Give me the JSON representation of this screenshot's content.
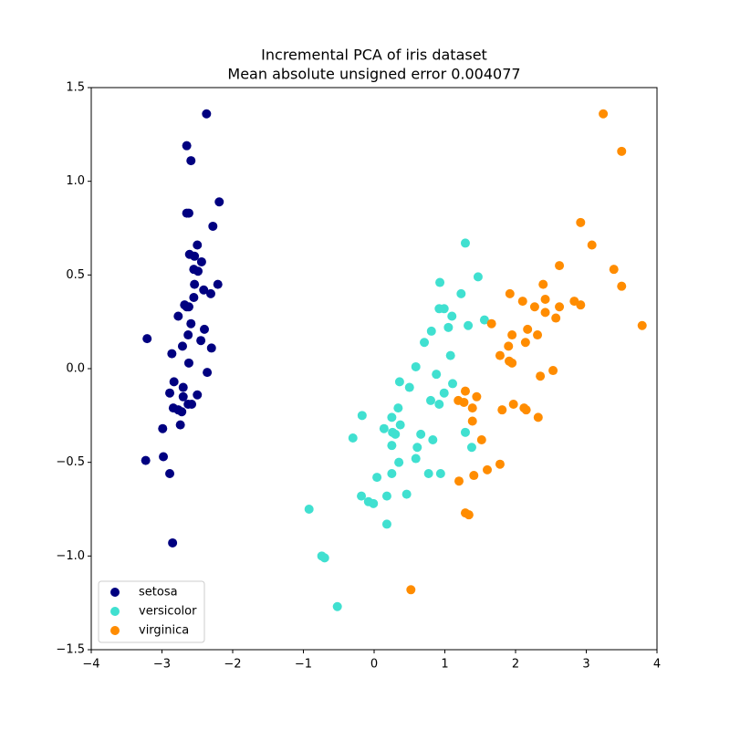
{
  "chart_data": {
    "type": "scatter",
    "title": "Incremental PCA of iris dataset",
    "subtitle": "Mean absolute unsigned error 0.004077",
    "xlim": [
      -4,
      4
    ],
    "ylim": [
      -1.5,
      1.5
    ],
    "xticks": [
      {
        "value": -4,
        "label": "−4"
      },
      {
        "value": -3,
        "label": "−3"
      },
      {
        "value": -2,
        "label": "−2"
      },
      {
        "value": -1,
        "label": "−1"
      },
      0,
      1,
      2,
      3,
      4
    ],
    "yticks": [
      {
        "value": -1.5,
        "label": "−1.5"
      },
      {
        "value": -1,
        "label": "−1.0"
      },
      {
        "value": -0.5,
        "label": "−0.5"
      },
      {
        "value": 0,
        "label": "0.0"
      },
      0.5,
      {
        "value": 1,
        "label": "1.0"
      },
      1.5
    ],
    "grid": false,
    "legend": "lower left",
    "series": [
      {
        "name": "setosa",
        "color": "#000080",
        "x": [
          -2.37,
          -2.65,
          -2.59,
          -2.62,
          -2.65,
          -2.19,
          -2.28,
          -2.5,
          -2.61,
          -2.54,
          -2.44,
          -2.55,
          -2.49,
          -2.54,
          -2.55,
          -2.68,
          -2.41,
          -2.21,
          -2.31,
          -2.65,
          -2.62,
          -2.77,
          -2.59,
          -2.4,
          -2.63,
          -2.45,
          -2.3,
          -3.21,
          -2.86,
          -2.71,
          -2.62,
          -2.36,
          -2.83,
          -2.89,
          -2.7,
          -2.63,
          -2.5,
          -2.84,
          -2.77,
          -2.72,
          -2.58,
          -2.74,
          -2.99,
          -3.23,
          -2.98,
          -2.89,
          -2.85,
          -2.7
        ],
        "values": [
          1.36,
          1.19,
          1.11,
          0.83,
          0.83,
          0.89,
          0.76,
          0.66,
          0.61,
          0.6,
          0.57,
          0.53,
          0.52,
          0.45,
          0.38,
          0.34,
          0.42,
          0.45,
          0.4,
          0.33,
          0.33,
          0.28,
          0.24,
          0.21,
          0.18,
          0.15,
          0.11,
          0.16,
          0.08,
          0.12,
          0.03,
          -0.02,
          -0.07,
          -0.13,
          -0.15,
          -0.19,
          -0.14,
          -0.21,
          -0.22,
          -0.23,
          -0.19,
          -0.3,
          -0.32,
          -0.49,
          -0.47,
          -0.56,
          -0.93,
          -0.1
        ]
      },
      {
        "name": "versicolor",
        "color": "#40e0d0",
        "x": [
          1.29,
          1.47,
          0.93,
          1.23,
          0.92,
          0.99,
          1.1,
          1.56,
          1.33,
          1.05,
          0.81,
          0.71,
          1.08,
          0.88,
          0.59,
          0.36,
          0.5,
          1.11,
          0.8,
          0.92,
          0.99,
          0.34,
          -0.17,
          0.25,
          0.37,
          0.14,
          0.26,
          0.3,
          0.66,
          1.29,
          -0.3,
          0.83,
          0.61,
          0.25,
          1.38,
          0.59,
          0.35,
          0.77,
          0.94,
          0.25,
          0.04,
          0.46,
          0.18,
          -0.18,
          -0.08,
          -0.01,
          0.18,
          -0.92,
          -0.74,
          -0.7,
          -0.52
        ],
        "values": [
          0.67,
          0.49,
          0.46,
          0.4,
          0.32,
          0.32,
          0.28,
          0.26,
          0.23,
          0.22,
          0.2,
          0.14,
          0.07,
          -0.03,
          0.01,
          -0.07,
          -0.1,
          -0.08,
          -0.17,
          -0.19,
          -0.13,
          -0.21,
          -0.25,
          -0.26,
          -0.3,
          -0.32,
          -0.34,
          -0.35,
          -0.35,
          -0.34,
          -0.37,
          -0.38,
          -0.42,
          -0.41,
          -0.42,
          -0.48,
          -0.5,
          -0.56,
          -0.56,
          -0.56,
          -0.58,
          -0.67,
          -0.68,
          -0.68,
          -0.71,
          -0.72,
          -0.83,
          -0.75,
          -1.0,
          -1.01,
          -1.27
        ]
      },
      {
        "name": "virginica",
        "color": "#ff8c00",
        "x": [
          3.24,
          3.5,
          2.92,
          3.08,
          3.39,
          3.5,
          3.79,
          2.62,
          2.39,
          1.92,
          2.1,
          2.42,
          2.27,
          2.62,
          2.83,
          2.92,
          2.42,
          2.57,
          1.66,
          2.17,
          1.95,
          2.31,
          2.14,
          1.9,
          1.78,
          1.91,
          1.95,
          2.53,
          2.35,
          1.29,
          1.45,
          1.19,
          1.27,
          1.97,
          1.39,
          2.12,
          2.15,
          1.81,
          2.32,
          1.39,
          1.52,
          1.78,
          1.6,
          1.41,
          1.2,
          1.29,
          1.34,
          0.52
        ],
        "values": [
          1.36,
          1.16,
          0.78,
          0.66,
          0.53,
          0.44,
          0.23,
          0.55,
          0.45,
          0.4,
          0.36,
          0.37,
          0.33,
          0.33,
          0.36,
          0.34,
          0.3,
          0.27,
          0.24,
          0.21,
          0.18,
          0.18,
          0.14,
          0.12,
          0.07,
          0.04,
          0.03,
          -0.01,
          -0.04,
          -0.12,
          -0.15,
          -0.17,
          -0.18,
          -0.19,
          -0.21,
          -0.21,
          -0.22,
          -0.22,
          -0.26,
          -0.28,
          -0.38,
          -0.51,
          -0.54,
          -0.57,
          -0.6,
          -0.77,
          -0.78,
          -1.18
        ]
      }
    ]
  }
}
